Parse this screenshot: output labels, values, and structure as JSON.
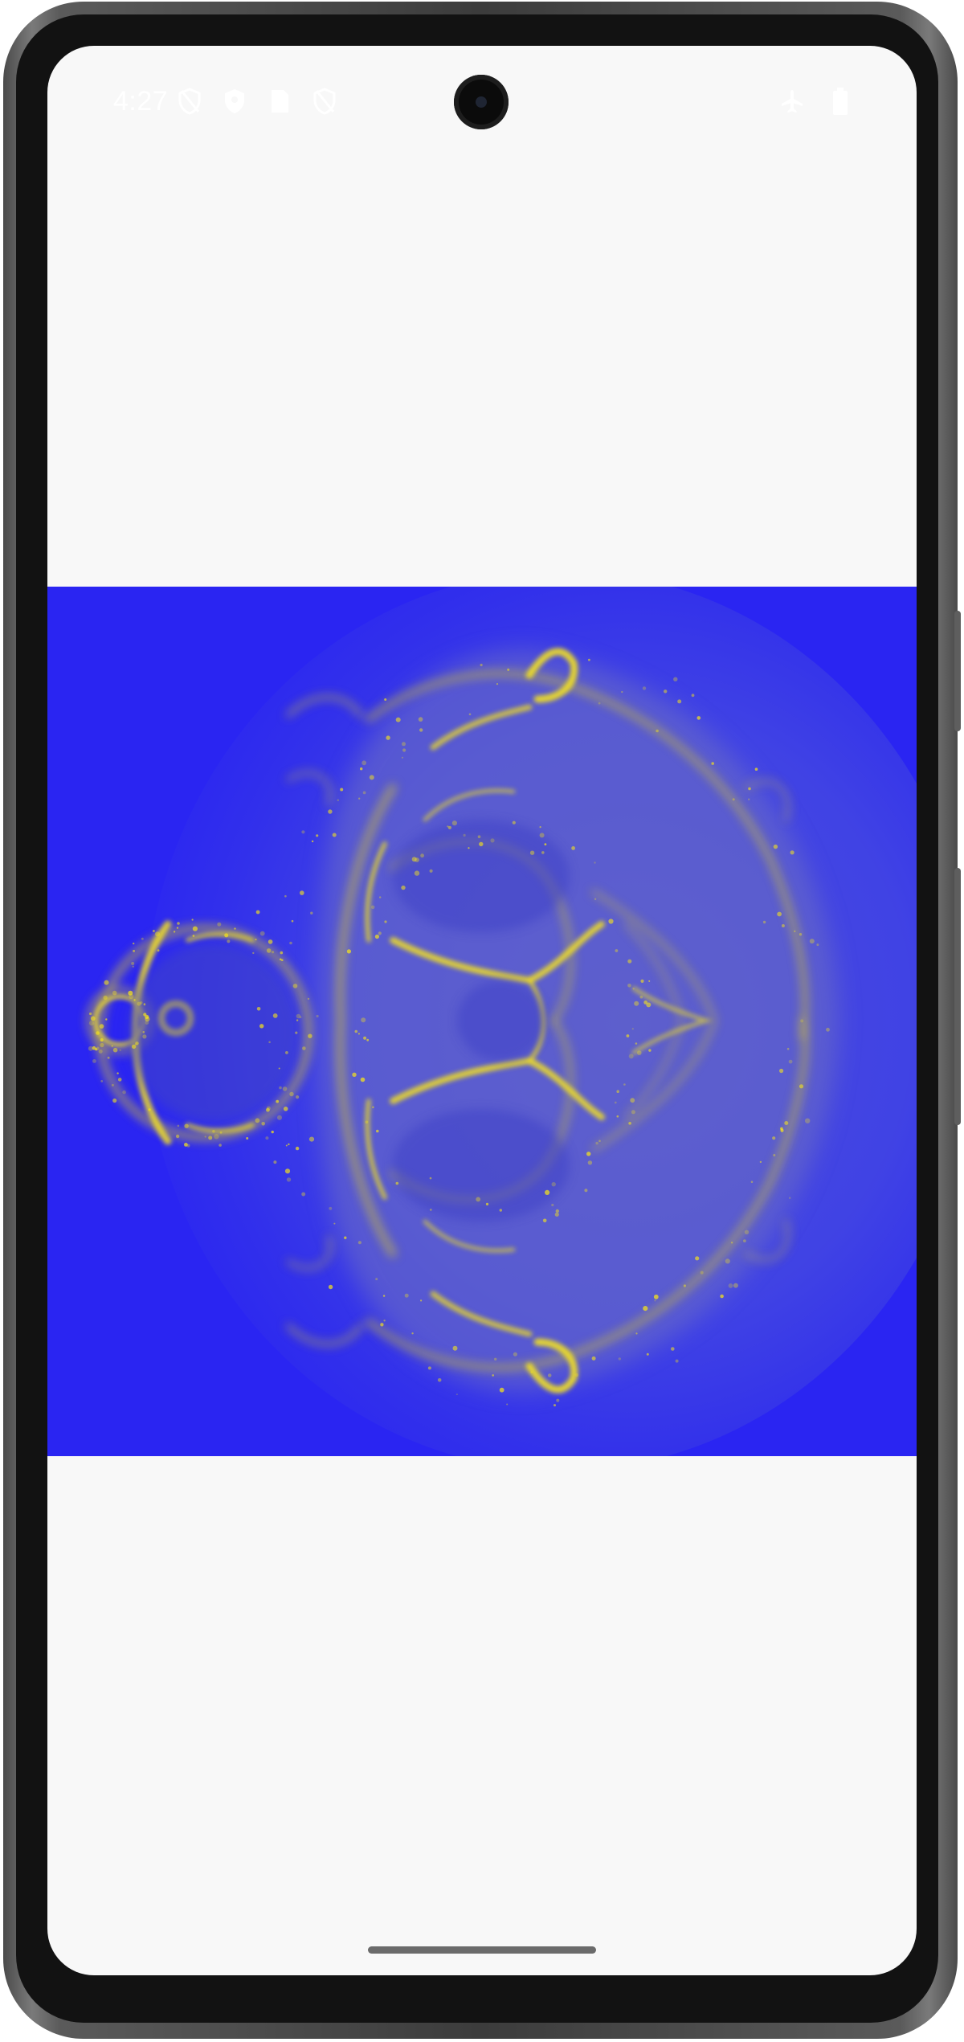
{
  "status_bar": {
    "time": "4:27",
    "left_icons": [
      "shield-off-icon",
      "shield-icon",
      "sim-card-icon",
      "shield-off-icon"
    ],
    "right_icons": [
      "airplane-icon",
      "battery-icon"
    ]
  },
  "content": {
    "image_subject": "buddhabrot-fractal",
    "colors": {
      "background": "#2a25f2",
      "glow": "#f4e21c",
      "screen": "#f8f8f8"
    }
  },
  "navigation": {
    "gesture": "gesture-bar"
  }
}
